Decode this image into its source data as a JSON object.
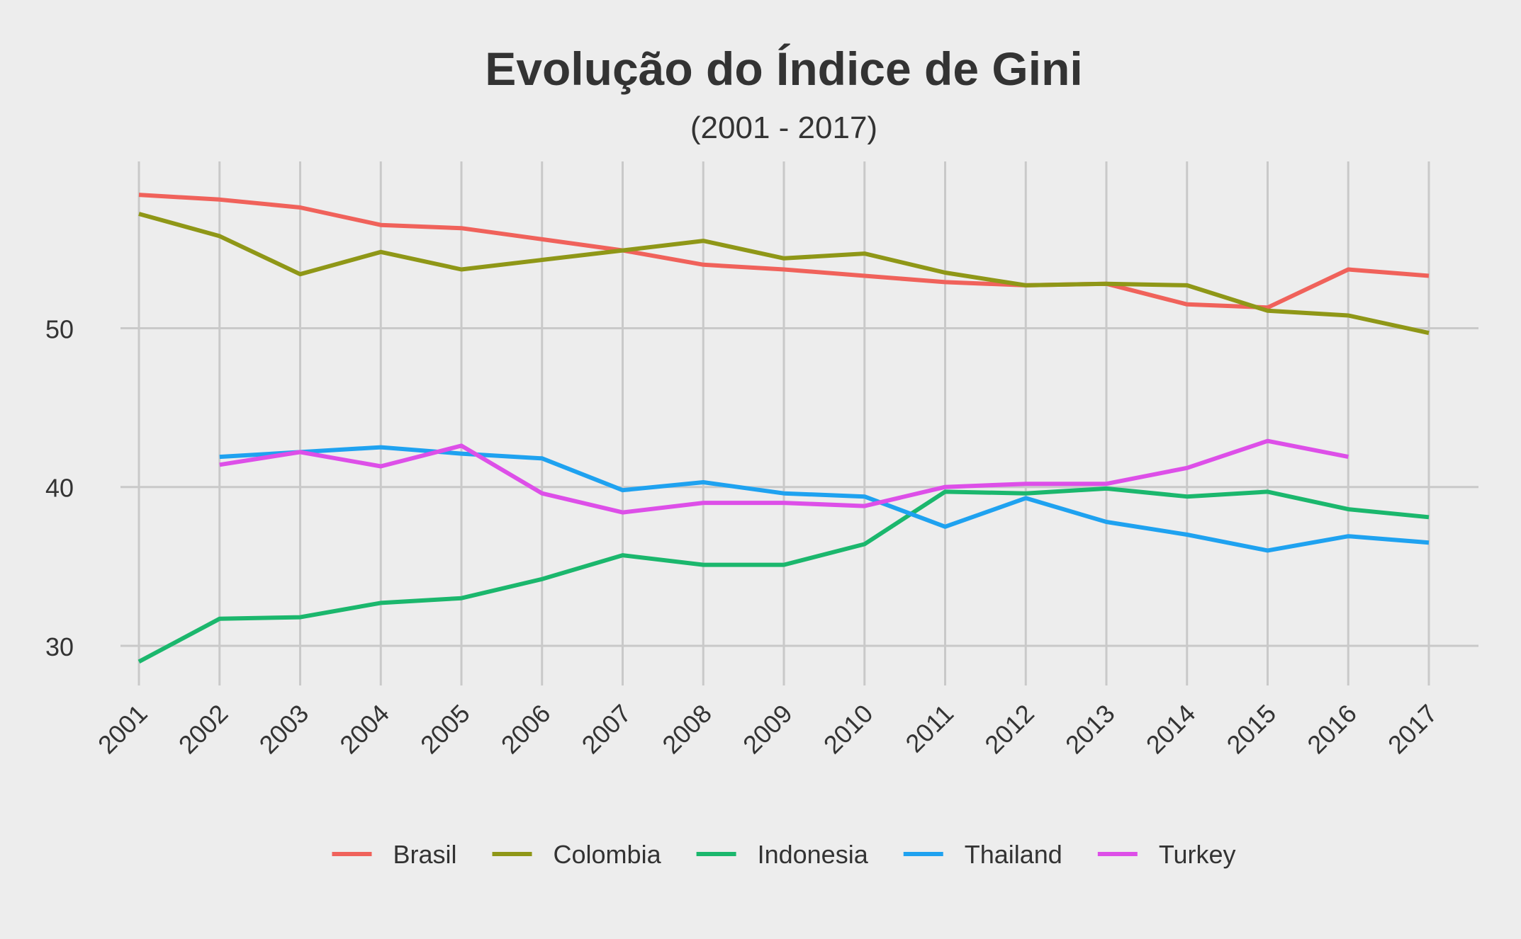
{
  "chart_data": {
    "type": "line",
    "title": "Evolução do Índice de Gini",
    "subtitle": "(2001 - 2017)",
    "xlabel": "",
    "ylabel": "",
    "x": [
      "2001",
      "2002",
      "2003",
      "2004",
      "2005",
      "2006",
      "2007",
      "2008",
      "2009",
      "2010",
      "2011",
      "2012",
      "2013",
      "2014",
      "2015",
      "2016",
      "2017"
    ],
    "ylim": [
      27.5,
      60.5
    ],
    "yticks": [
      30,
      40,
      50
    ],
    "grid": true,
    "legend_position": "bottom",
    "series": [
      {
        "name": "Brasil",
        "color": "#f0625b",
        "values": [
          58.4,
          58.1,
          57.6,
          56.5,
          56.3,
          55.6,
          54.9,
          54.0,
          53.7,
          53.3,
          52.9,
          52.7,
          52.8,
          51.5,
          51.3,
          53.7,
          53.3
        ]
      },
      {
        "name": "Colombia",
        "color": "#8f9717",
        "values": [
          57.2,
          55.8,
          53.4,
          54.8,
          53.7,
          54.3,
          54.9,
          55.5,
          54.4,
          54.7,
          53.5,
          52.7,
          52.8,
          52.7,
          51.1,
          50.8,
          49.7
        ]
      },
      {
        "name": "Indonesia",
        "color": "#1bb76d",
        "values": [
          29.0,
          31.7,
          31.8,
          32.7,
          33.0,
          34.2,
          35.7,
          35.1,
          35.1,
          36.4,
          39.7,
          39.6,
          39.9,
          39.4,
          39.7,
          38.6,
          38.1
        ]
      },
      {
        "name": "Thailand",
        "color": "#1fa2f0",
        "values": [
          null,
          41.9,
          42.2,
          42.5,
          42.1,
          41.8,
          39.8,
          40.3,
          39.6,
          39.4,
          37.5,
          39.3,
          37.8,
          37.0,
          36.0,
          36.9,
          36.5
        ]
      },
      {
        "name": "Turkey",
        "color": "#dd4fe8",
        "values": [
          null,
          41.4,
          42.2,
          41.3,
          42.6,
          39.6,
          38.4,
          39.0,
          39.0,
          38.8,
          40.0,
          40.2,
          40.2,
          41.2,
          42.9,
          41.9,
          null
        ]
      }
    ]
  }
}
